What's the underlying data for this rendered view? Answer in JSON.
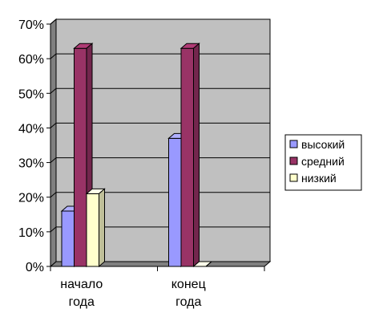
{
  "chart_data": {
    "type": "bar",
    "title": "",
    "xlabel": "",
    "ylabel": "",
    "categories": [
      [
        "начало",
        "года"
      ],
      [
        "конец",
        "года"
      ]
    ],
    "series": [
      {
        "name": "высокий",
        "values": [
          16,
          37
        ],
        "color": "#9999ff"
      },
      {
        "name": "средний",
        "values": [
          63,
          63
        ],
        "color": "#993366"
      },
      {
        "name": "низкий",
        "values": [
          21,
          0
        ],
        "color": "#ffffcc"
      }
    ],
    "ylim": [
      0,
      70
    ],
    "yticks": [
      "0%",
      "10%",
      "20%",
      "30%",
      "40%",
      "50%",
      "60%",
      "70%"
    ],
    "grid": true,
    "plot_background": "#c0c0c0",
    "legend_position": "right",
    "three_d": true
  }
}
